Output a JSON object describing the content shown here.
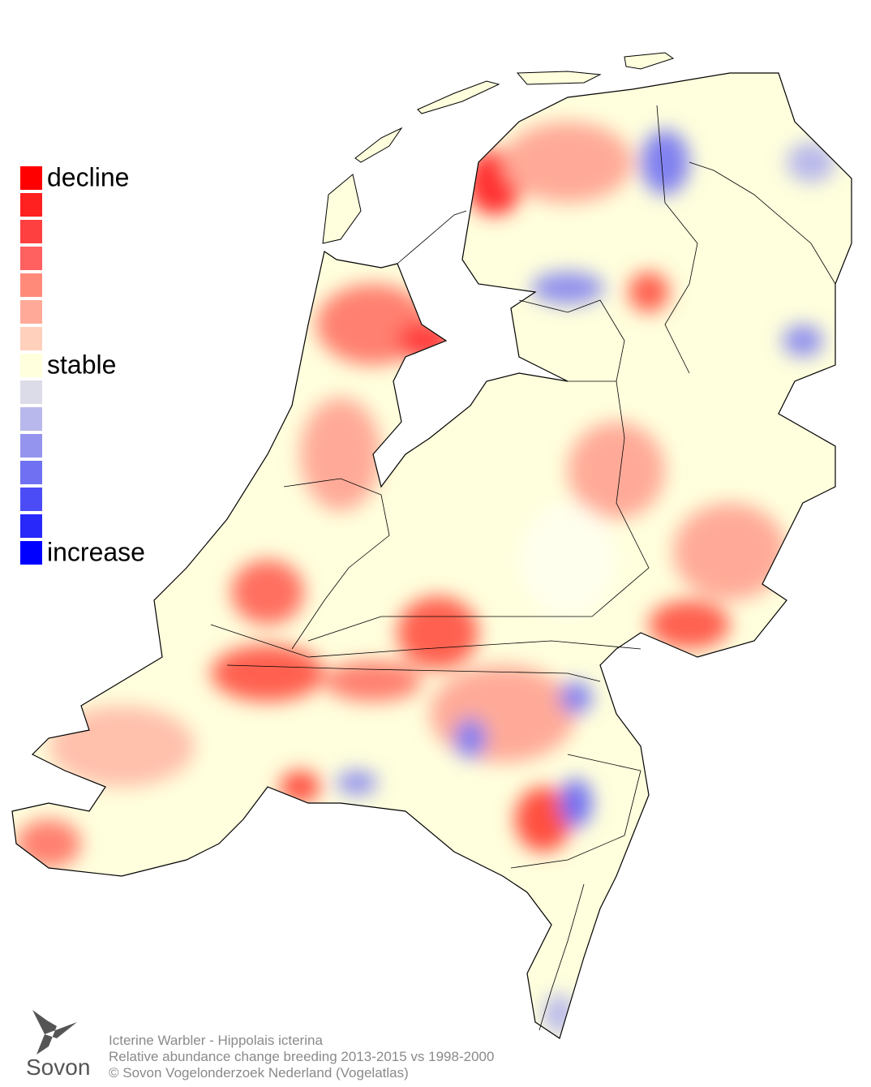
{
  "legend": {
    "items": [
      {
        "color": "#ff0000",
        "label": "decline"
      },
      {
        "color": "#ff2020"
      },
      {
        "color": "#ff4040"
      },
      {
        "color": "#ff6060"
      },
      {
        "color": "#ff8a7a"
      },
      {
        "color": "#ffaa98"
      },
      {
        "color": "#ffd0bc"
      },
      {
        "color": "#ffffdd",
        "label": "stable"
      },
      {
        "color": "#dcdce8"
      },
      {
        "color": "#b8b8ec"
      },
      {
        "color": "#9494ee"
      },
      {
        "color": "#7070f2"
      },
      {
        "color": "#4c4cf6"
      },
      {
        "color": "#2828fa"
      },
      {
        "color": "#0000ff",
        "label": "increase"
      }
    ]
  },
  "caption": {
    "lines": [
      "Icterine Warbler - Hippolais icterina",
      "Relative abundance change breeding 2013-2015 vs 1998-2000",
      "© Sovon Vogelonderzoek Nederland (Vogelatlas)"
    ]
  },
  "logo": {
    "text": "Sovon"
  }
}
